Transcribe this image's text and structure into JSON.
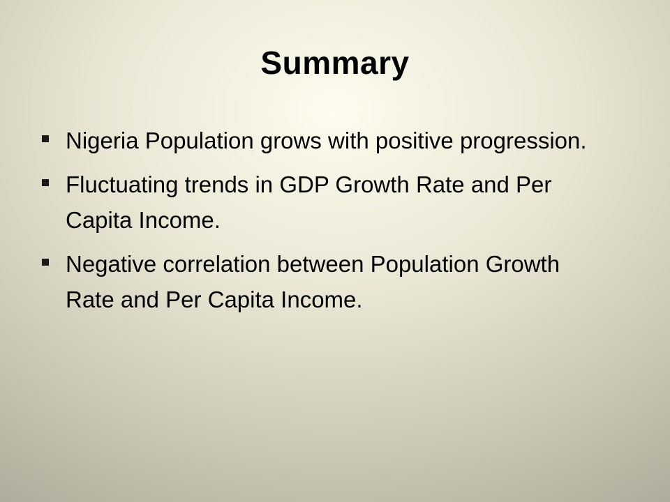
{
  "slide": {
    "title": "Summary",
    "bullets": [
      {
        "text": "Nigeria Population grows with positive progression."
      },
      {
        "text": "Fluctuating trends in GDP Growth Rate and Per Capita Income."
      },
      {
        "text": "Negative correlation between Population Growth Rate and Per Capita Income."
      }
    ]
  }
}
